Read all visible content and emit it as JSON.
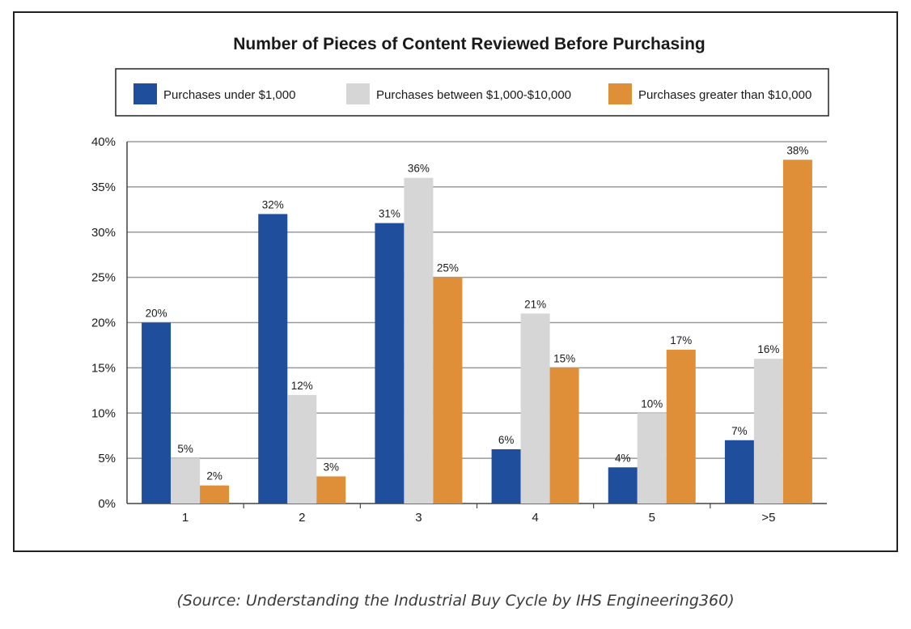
{
  "chart_data": {
    "type": "bar",
    "title": "Number of Pieces of Content Reviewed Before Purchasing",
    "xlabel": "",
    "ylabel": "",
    "categories": [
      "1",
      "2",
      "3",
      "4",
      "5",
      ">5"
    ],
    "ylim": [
      0,
      40
    ],
    "yticks": [
      0,
      5,
      10,
      15,
      20,
      25,
      30,
      35,
      40
    ],
    "ytick_suffix": "%",
    "grid": true,
    "legend_position": "top",
    "series": [
      {
        "name": "Purchases under $1,000",
        "color": "#1f4e9c",
        "values": [
          20,
          32,
          31,
          6,
          4,
          7
        ],
        "labels": [
          "20%",
          "32%",
          "31%",
          "6%",
          "4%",
          "7%"
        ]
      },
      {
        "name": "Purchases between $1,000-$10,000",
        "color": "#d6d6d6",
        "values": [
          5,
          12,
          36,
          21,
          10,
          16
        ],
        "labels": [
          "5%",
          "12%",
          "36%",
          "21%",
          "10%",
          "16%"
        ]
      },
      {
        "name": "Purchases greater than $10,000",
        "color": "#de8f38",
        "values": [
          2,
          3,
          25,
          15,
          17,
          38
        ],
        "labels": [
          "2%",
          "3%",
          "25%",
          "15%",
          "17%",
          "38%"
        ]
      }
    ]
  },
  "caption": "(Source: Understanding the Industrial Buy Cycle by IHS Engineering360)"
}
